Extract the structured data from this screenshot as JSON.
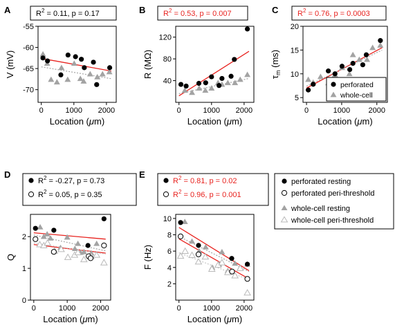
{
  "colors": {
    "black": "#000000",
    "red": "#e8231f",
    "gray": "#a3a3a3",
    "lightgray": "#c4c4c4",
    "hollow_gray": "#b9b9b9"
  },
  "legend_e": {
    "perf_rest": "perforated resting",
    "perf_peri": "perforated peri-threshold",
    "wc_rest": "whole-cell resting",
    "wc_peri": "whole-cell peri-threshold"
  },
  "chart_data": [
    {
      "type": "scatter",
      "panel_label": "A",
      "stat_boxes": [
        {
          "text": "R² = 0.11, p = 0.17",
          "color": "black"
        }
      ],
      "xlabel": "Location (μm)",
      "ylabel": "V (mV)",
      "xlim": [
        -100,
        2300
      ],
      "ylim": [
        -73,
        -55
      ],
      "xticks": [
        0,
        1000,
        2000
      ],
      "yticks": [
        -55,
        -60,
        -65,
        -70
      ],
      "series": [
        {
          "style": "filled-circle",
          "color": "black",
          "x": [
            50,
            190,
            600,
            820,
            1050,
            1230,
            1320,
            1600,
            1700,
            2100
          ],
          "y": [
            -62.5,
            -63.2,
            -66.5,
            -61.8,
            -62.2,
            -62.8,
            -64.8,
            -63.5,
            -68.8,
            -64.8
          ]
        },
        {
          "style": "filled-triangle",
          "color": "gray",
          "x": [
            50,
            180,
            300,
            480,
            620,
            810,
            1010,
            1200,
            1300,
            1500,
            1720,
            1880,
            2090
          ],
          "y": [
            -61.6,
            -63.8,
            -67.6,
            -68.2,
            -64.8,
            -67.6,
            -63.8,
            -67.4,
            -68.0,
            -66.3,
            -67.0,
            -66.3,
            -65.8
          ]
        }
      ],
      "fits": [
        {
          "color": "red",
          "dash": false,
          "x": [
            0,
            2150
          ],
          "y": [
            -62.6,
            -65.6
          ]
        },
        {
          "color": "gray",
          "dash": true,
          "x": [
            0,
            2150
          ],
          "y": [
            -64.6,
            -67.4
          ]
        }
      ]
    },
    {
      "type": "scatter",
      "panel_label": "B",
      "stat_boxes": [
        {
          "text": "R² = 0.53, p = 0.007",
          "color": "red"
        }
      ],
      "xlabel": "Location (μm)",
      "ylabel": "R (MΩ)",
      "xlim": [
        -100,
        2300
      ],
      "ylim": [
        0,
        140
      ],
      "xticks": [
        0,
        1000,
        2000
      ],
      "yticks": [
        40,
        80,
        120
      ],
      "series": [
        {
          "style": "filled-circle",
          "color": "black",
          "x": [
            60,
            220,
            610,
            820,
            1000,
            1230,
            1320,
            1600,
            1700,
            2100
          ],
          "y": [
            33,
            30,
            35,
            36,
            47,
            31,
            44,
            48,
            79,
            135
          ]
        },
        {
          "style": "filled-triangle",
          "color": "gray",
          "x": [
            180,
            400,
            620,
            810,
            1000,
            1200,
            1320,
            1500,
            1720,
            1880,
            2100
          ],
          "y": [
            22,
            18,
            26,
            22,
            26,
            36,
            33,
            36,
            36,
            42,
            51
          ]
        }
      ],
      "fits": [
        {
          "color": "red",
          "dash": false,
          "x": [
            0,
            2150
          ],
          "y": [
            12,
            94
          ]
        },
        {
          "color": "gray",
          "dash": true,
          "x": [
            0,
            2150
          ],
          "y": [
            16,
            44
          ]
        }
      ]
    },
    {
      "type": "scatter",
      "panel_label": "C",
      "stat_boxes": [
        {
          "text": "R² = 0.76, p = 0.0003",
          "color": "red"
        }
      ],
      "xlabel": "Location (μm)",
      "ylabel": "τm (ms)",
      "xlim": [
        -100,
        2300
      ],
      "ylim": [
        4,
        20
      ],
      "xticks": [
        0,
        1000,
        2000
      ],
      "yticks": [
        5,
        10,
        15,
        20
      ],
      "series": [
        {
          "style": "filled-circle",
          "color": "black",
          "x": [
            50,
            190,
            620,
            810,
            1010,
            1230,
            1320,
            1600,
            1700,
            2100
          ],
          "y": [
            6.6,
            7.8,
            10.6,
            10.0,
            11.6,
            10.9,
            12.2,
            11.9,
            14.0,
            17.0
          ]
        },
        {
          "style": "filled-triangle",
          "color": "gray",
          "x": [
            50,
            190,
            400,
            620,
            810,
            1010,
            1220,
            1320,
            1500,
            1720,
            1880,
            2100
          ],
          "y": [
            8.8,
            8.2,
            9.4,
            8.1,
            9.8,
            11.3,
            10.0,
            14.0,
            13.0,
            13.0,
            15.5,
            16.0
          ]
        }
      ],
      "fits": [
        {
          "color": "red",
          "dash": false,
          "x": [
            0,
            2150
          ],
          "y": [
            7.0,
            15.5
          ]
        },
        {
          "color": "gray",
          "dash": true,
          "x": [
            0,
            2150
          ],
          "y": [
            7.4,
            15.0
          ]
        }
      ],
      "legend": {
        "position": "bottom-right",
        "entries": [
          {
            "label": "perforated",
            "style": "filled-circle",
            "color": "black"
          },
          {
            "label": "whole-cell",
            "style": "filled-triangle",
            "color": "gray"
          }
        ]
      }
    },
    {
      "type": "scatter",
      "panel_label": "D",
      "stat_boxes": [
        {
          "text": "R² = -0.27, p = 0.73",
          "color": "black",
          "marker": "filled-circle"
        },
        {
          "text": "R² = 0.05, p = 0.35",
          "color": "black",
          "marker": "open-circle"
        }
      ],
      "xlabel": "Location (μm)",
      "ylabel": "Q",
      "xlim": [
        -100,
        2300
      ],
      "ylim": [
        0,
        2.7
      ],
      "xticks": [
        0,
        1000,
        2000
      ],
      "yticks": [
        0,
        1,
        2
      ],
      "series": [
        {
          "style": "filled-circle",
          "color": "black",
          "x": [
            50,
            600,
            1620,
            2100
          ],
          "y": [
            2.26,
            2.2,
            1.72,
            2.56
          ]
        },
        {
          "style": "open-circle",
          "color": "black",
          "x": [
            50,
            600,
            1640,
            1700,
            2100
          ],
          "y": [
            1.92,
            1.52,
            1.38,
            1.32,
            1.72
          ]
        },
        {
          "style": "filled-triangle",
          "color": "gray",
          "x": [
            190,
            300,
            400,
            500,
            800,
            1000,
            1230,
            1320,
            1400,
            1500,
            1720,
            1880
          ],
          "y": [
            2.3,
            2.0,
            2.08,
            1.95,
            1.65,
            1.98,
            1.62,
            1.78,
            1.5,
            1.52,
            1.48,
            1.78
          ]
        },
        {
          "style": "open-triangle",
          "color": "hollow_gray",
          "x": [
            180,
            300,
            410,
            620,
            820,
            1020,
            1220,
            1320,
            1500,
            1720,
            1880,
            2100
          ],
          "y": [
            1.75,
            1.72,
            1.8,
            1.55,
            1.6,
            1.35,
            1.42,
            1.5,
            1.28,
            1.38,
            1.42,
            1.18
          ]
        }
      ],
      "fits": [
        {
          "color": "red",
          "dash": false,
          "x": [
            0,
            2150
          ],
          "y": [
            2.12,
            1.92
          ]
        },
        {
          "color": "red",
          "dash": false,
          "x": [
            0,
            2150
          ],
          "y": [
            1.75,
            1.48
          ]
        },
        {
          "color": "gray",
          "dash": true,
          "x": [
            0,
            2150
          ],
          "y": [
            2.05,
            1.55
          ]
        },
        {
          "color": "lightgray",
          "dash": true,
          "x": [
            0,
            2150
          ],
          "y": [
            1.8,
            1.45
          ]
        }
      ]
    },
    {
      "type": "scatter",
      "panel_label": "E",
      "stat_boxes": [
        {
          "text": "R² = 0.81, p = 0.02",
          "color": "red",
          "marker": "filled-circle"
        },
        {
          "text": "R² = 0.96, p = 0.001",
          "color": "red",
          "marker": "open-circle"
        }
      ],
      "xlabel": "Location (μm)",
      "ylabel": "F (Hz)",
      "xlim": [
        -100,
        2300
      ],
      "ylim": [
        0,
        10.5
      ],
      "xticks": [
        0,
        1000,
        2000
      ],
      "yticks": [
        2,
        4,
        6,
        8,
        10
      ],
      "series": [
        {
          "style": "filled-circle",
          "color": "black",
          "x": [
            50,
            600,
            1620,
            2100
          ],
          "y": [
            9.5,
            6.7,
            5.1,
            4.4
          ]
        },
        {
          "style": "open-circle",
          "color": "black",
          "x": [
            50,
            600,
            1630,
            2100
          ],
          "y": [
            7.8,
            5.6,
            3.5,
            2.6
          ]
        },
        {
          "style": "filled-triangle",
          "color": "gray",
          "x": [
            180,
            400,
            620,
            820,
            1020,
            1230,
            1320,
            1500,
            1720,
            1880,
            2100
          ],
          "y": [
            9.6,
            7.2,
            6.0,
            6.5,
            4.0,
            4.4,
            5.9,
            3.6,
            4.5,
            4.0,
            4.4
          ]
        },
        {
          "style": "open-triangle",
          "color": "hollow_gray",
          "x": [
            50,
            190,
            400,
            600,
            810,
            1010,
            1200,
            1320,
            1500,
            1720,
            1880,
            2100
          ],
          "y": [
            5.4,
            6.0,
            5.5,
            4.7,
            5.3,
            3.8,
            4.3,
            4.6,
            3.4,
            3.0,
            3.9,
            0.9
          ]
        }
      ],
      "fits": [
        {
          "color": "red",
          "dash": false,
          "x": [
            0,
            2150
          ],
          "y": [
            8.9,
            3.6
          ]
        },
        {
          "color": "red",
          "dash": false,
          "x": [
            0,
            2150
          ],
          "y": [
            7.5,
            2.6
          ]
        },
        {
          "color": "gray",
          "dash": true,
          "x": [
            0,
            2150
          ],
          "y": [
            7.8,
            3.5
          ]
        },
        {
          "color": "lightgray",
          "dash": true,
          "x": [
            0,
            2150
          ],
          "y": [
            5.8,
            2.5
          ]
        }
      ]
    }
  ]
}
